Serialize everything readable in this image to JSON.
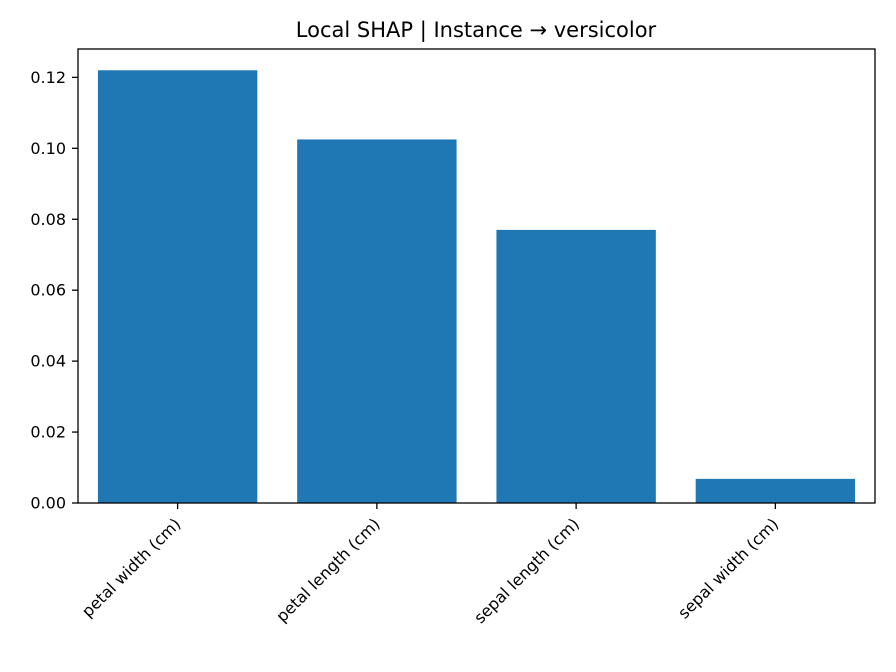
{
  "chart_data": {
    "type": "bar",
    "title": "Local SHAP | Instance → versicolor",
    "xlabel": "",
    "ylabel": "",
    "categories": [
      "petal width (cm)",
      "petal length (cm)",
      "sepal length (cm)",
      "sepal width (cm)"
    ],
    "values": [
      0.122,
      0.1025,
      0.077,
      0.0068
    ],
    "ylim": [
      0,
      0.128
    ],
    "yticks": [
      0.0,
      0.02,
      0.04,
      0.06,
      0.08,
      0.1,
      0.12
    ],
    "ytick_labels": [
      "0.00",
      "0.02",
      "0.04",
      "0.06",
      "0.08",
      "0.10",
      "0.12"
    ],
    "bar_color": "#1f77b4",
    "grid": false,
    "legend": "none"
  }
}
